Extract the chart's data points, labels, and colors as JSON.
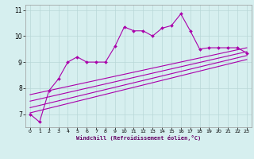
{
  "xlabel": "Windchill (Refroidissement éolien,°C)",
  "bg_color": "#d6efef",
  "grid_color": "#b8d8d8",
  "line_color": "#aa00aa",
  "x_ticks": [
    0,
    1,
    2,
    3,
    4,
    5,
    6,
    7,
    8,
    9,
    10,
    11,
    12,
    13,
    14,
    15,
    16,
    17,
    18,
    19,
    20,
    21,
    22,
    23
  ],
  "ylim": [
    6.5,
    11.2
  ],
  "xlim": [
    -0.5,
    23.5
  ],
  "yticks": [
    7,
    8,
    9,
    10,
    11
  ],
  "series1": [
    7.0,
    6.7,
    7.9,
    8.35,
    9.0,
    9.2,
    9.0,
    9.0,
    9.0,
    9.6,
    10.35,
    10.2,
    10.2,
    10.0,
    10.3,
    10.4,
    10.85,
    10.2,
    9.5,
    9.55,
    9.55,
    9.55,
    9.55,
    9.35
  ],
  "reg_lines": [
    {
      "x": [
        0,
        23
      ],
      "y": [
        7.05,
        9.1
      ]
    },
    {
      "x": [
        0,
        23
      ],
      "y": [
        7.25,
        9.25
      ]
    },
    {
      "x": [
        0,
        23
      ],
      "y": [
        7.5,
        9.4
      ]
    },
    {
      "x": [
        0,
        23
      ],
      "y": [
        7.75,
        9.55
      ]
    }
  ],
  "fig_width": 3.2,
  "fig_height": 2.0,
  "dpi": 100
}
